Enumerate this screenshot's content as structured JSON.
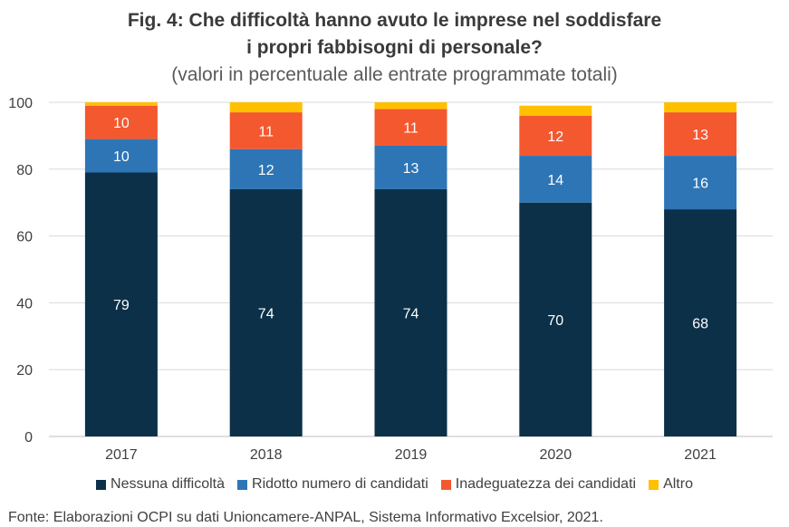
{
  "title_line1": "Fig. 4: Che difficoltà hanno avuto le imprese nel soddisfare",
  "title_line2": "i propri fabbisogni di personale?",
  "subtitle": "(valori in percentuale alle entrate programmate totali)",
  "source": "Fonte: Elaborazioni OCPI su dati Unioncamere-ANPAL, Sistema Informativo Excelsior, 2021.",
  "chart_data": {
    "type": "bar",
    "stacked": true,
    "categories": [
      "2017",
      "2018",
      "2019",
      "2020",
      "2021"
    ],
    "ylim": [
      0,
      100
    ],
    "yticks": [
      0,
      20,
      40,
      60,
      80,
      100
    ],
    "grid": true,
    "legend_position": "bottom",
    "series": [
      {
        "name": "Nessuna difficoltà",
        "color": "#0b3048",
        "values": [
          79,
          74,
          74,
          70,
          68
        ],
        "labels": [
          "79",
          "74",
          "74",
          "70",
          "68"
        ],
        "label_color": "#ffffff"
      },
      {
        "name": "Ridotto numero di candidati",
        "color": "#2e75b6",
        "values": [
          10,
          12,
          13,
          14,
          16
        ],
        "labels": [
          "10",
          "12",
          "13",
          "14",
          "16"
        ],
        "label_color": "#ffffff"
      },
      {
        "name": "Inadeguatezza dei candidati",
        "color": "#f4582f",
        "values": [
          10,
          11,
          11,
          12,
          13
        ],
        "labels": [
          "10",
          "11",
          "11",
          "12",
          "13"
        ],
        "label_color": "#ffffff"
      },
      {
        "name": "Altro",
        "color": "#ffc000",
        "values": [
          2,
          3,
          2,
          3,
          3
        ],
        "labels": [
          "",
          "",
          "",
          "",
          ""
        ],
        "label_color": "#404040"
      }
    ]
  }
}
